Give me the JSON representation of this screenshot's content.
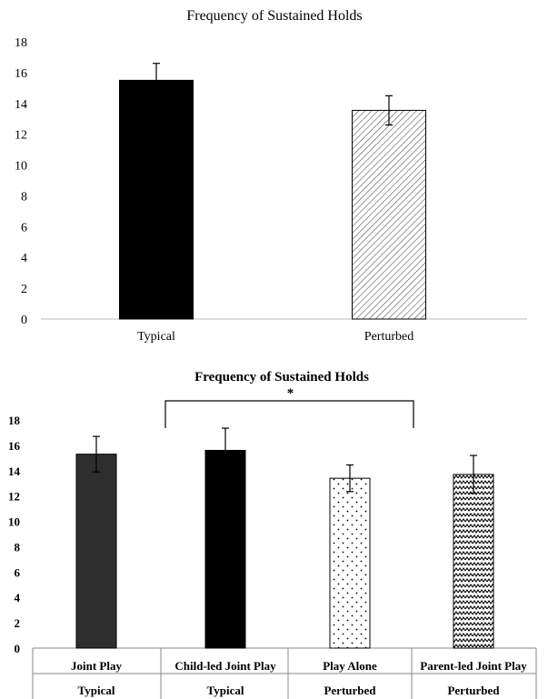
{
  "chart_data": [
    {
      "type": "bar",
      "title": "Frequency of Sustained Holds",
      "categories": [
        "Typical",
        "Perturbed"
      ],
      "values": [
        15.5,
        13.55
      ],
      "error": [
        1.1,
        0.95
      ],
      "ylim": [
        0,
        18
      ],
      "yticks": [
        "0",
        "2",
        "4",
        "6",
        "8",
        "10",
        "12",
        "14",
        "16",
        "18"
      ],
      "xlabel": "",
      "ylabel": "",
      "grid": false,
      "legend": "none",
      "colors": [
        "#000000",
        "#ffffff"
      ],
      "fills": [
        "solid-black",
        "diagonal-hatch"
      ]
    },
    {
      "type": "bar",
      "title": "Frequency of Sustained Holds",
      "categories": [
        "Joint Play",
        "Child-led Joint Play",
        "Play Alone",
        "Parent-led Joint Play"
      ],
      "group_labels": [
        "Typical",
        "Typical",
        "Perturbed",
        "Perturbed"
      ],
      "values": [
        15.3,
        15.6,
        13.4,
        13.7
      ],
      "error": [
        1.4,
        1.75,
        1.05,
        1.5
      ],
      "ylim": [
        0,
        18
      ],
      "yticks": [
        "0",
        "2",
        "4",
        "6",
        "8",
        "10",
        "12",
        "14",
        "16",
        "18"
      ],
      "significance": {
        "from": 1,
        "to": 2,
        "label": "*"
      },
      "xlabel": "",
      "ylabel": "",
      "grid": false,
      "legend": "none",
      "colors": [
        "#2e2e2e",
        "#000000",
        "#ffffff",
        "#ffffff"
      ],
      "fills": [
        "solid-dark",
        "solid-black",
        "dots",
        "zigzag"
      ]
    }
  ]
}
